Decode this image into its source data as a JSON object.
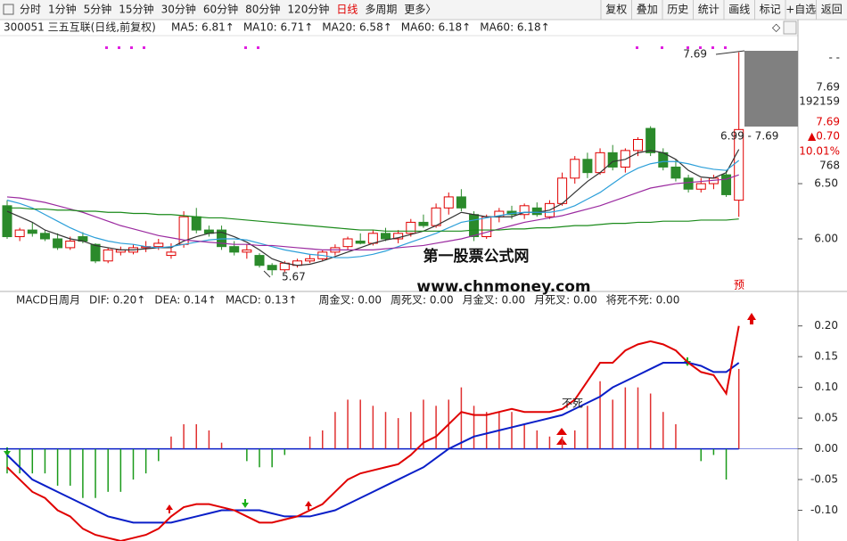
{
  "toolbar": {
    "tabs": [
      "分时",
      "1分钟",
      "5分钟",
      "15分钟",
      "30分钟",
      "60分钟",
      "80分钟",
      "120分钟",
      "日线",
      "多周期",
      "更多〉"
    ],
    "buttons": [
      "复权",
      "叠加",
      "历史",
      "统计",
      "画线",
      "标记",
      "+自选",
      "返回"
    ]
  },
  "quote_panel": [
    "- -",
    "7.69",
    "192159",
    "7.69",
    "▲0.70",
    "10.01%",
    "768"
  ],
  "chart_data": [
    {
      "type": "candlestick",
      "title": "300051 三五互联(日线,前复权)",
      "up_color": "#e00000",
      "down_color": "#2b8a2b",
      "open": [
        6.3,
        6.02,
        6.08,
        6.05,
        6.0,
        5.92,
        6.02,
        5.95,
        5.8,
        5.88,
        5.88,
        5.92,
        5.93,
        5.85,
        5.95,
        6.2,
        6.08,
        6.08,
        5.93,
        5.88,
        5.85,
        5.76,
        5.72,
        5.76,
        5.8,
        5.82,
        5.88,
        5.93,
        5.98,
        5.96,
        6.05,
        6.0,
        6.05,
        6.15,
        6.12,
        6.28,
        6.38,
        6.22,
        6.02,
        6.2,
        6.25,
        6.22,
        6.28,
        6.2,
        6.32,
        6.55,
        6.72,
        6.6,
        6.78,
        6.65,
        6.8,
        7.0,
        6.78,
        6.65,
        6.55,
        6.45,
        6.5,
        6.58,
        6.35
      ],
      "high": [
        6.35,
        6.1,
        6.15,
        6.08,
        6.05,
        6.02,
        6.06,
        5.96,
        5.92,
        5.93,
        5.95,
        5.98,
        6.0,
        5.96,
        6.25,
        6.28,
        6.12,
        6.12,
        5.98,
        5.95,
        5.87,
        5.78,
        5.8,
        5.82,
        5.86,
        5.9,
        5.95,
        6.02,
        6.05,
        6.08,
        6.1,
        6.08,
        6.18,
        6.22,
        6.32,
        6.42,
        6.45,
        6.25,
        6.22,
        6.28,
        6.3,
        6.32,
        6.33,
        6.35,
        6.6,
        6.75,
        6.78,
        6.82,
        6.85,
        6.82,
        6.92,
        7.02,
        6.82,
        6.72,
        6.58,
        6.55,
        6.58,
        6.62,
        7.69
      ],
      "low": [
        6.0,
        5.98,
        6.02,
        5.98,
        5.9,
        5.9,
        5.96,
        5.78,
        5.78,
        5.85,
        5.86,
        5.88,
        5.9,
        5.82,
        5.92,
        6.05,
        6.02,
        5.9,
        5.85,
        5.82,
        5.74,
        5.67,
        5.7,
        5.74,
        5.78,
        5.8,
        5.85,
        5.9,
        5.95,
        5.94,
        5.98,
        5.96,
        6.02,
        6.1,
        6.1,
        6.22,
        6.25,
        5.98,
        6.0,
        6.15,
        6.18,
        6.18,
        6.2,
        6.18,
        6.3,
        6.5,
        6.55,
        6.58,
        6.62,
        6.6,
        6.75,
        6.75,
        6.62,
        6.52,
        6.42,
        6.42,
        6.45,
        6.38,
        6.2
      ],
      "close": [
        6.02,
        6.08,
        6.05,
        6.0,
        5.92,
        5.98,
        5.98,
        5.8,
        5.9,
        5.9,
        5.92,
        5.93,
        5.96,
        5.88,
        6.2,
        6.08,
        6.05,
        5.93,
        5.88,
        5.9,
        5.76,
        5.72,
        5.78,
        5.8,
        5.82,
        5.88,
        5.92,
        6.0,
        5.96,
        6.05,
        6.0,
        6.05,
        6.15,
        6.12,
        6.28,
        6.38,
        6.28,
        6.02,
        6.2,
        6.25,
        6.22,
        6.3,
        6.22,
        6.32,
        6.55,
        6.72,
        6.6,
        6.78,
        6.65,
        6.8,
        6.9,
        6.78,
        6.65,
        6.55,
        6.45,
        6.5,
        6.55,
        6.4,
        6.99
      ],
      "series": [
        {
          "name": "MA5: 6.81↑",
          "color": "#333333",
          "values": [
            6.25,
            6.2,
            6.15,
            6.08,
            6.04,
            6.0,
            5.98,
            5.94,
            5.92,
            5.9,
            5.9,
            5.91,
            5.92,
            5.92,
            5.98,
            6.02,
            6.05,
            6.06,
            6.02,
            5.97,
            5.9,
            5.82,
            5.78,
            5.76,
            5.77,
            5.8,
            5.84,
            5.88,
            5.92,
            5.96,
            5.99,
            6.01,
            6.04,
            6.07,
            6.12,
            6.18,
            6.24,
            6.22,
            6.2,
            6.2,
            6.2,
            6.24,
            6.24,
            6.26,
            6.32,
            6.42,
            6.52,
            6.6,
            6.7,
            6.72,
            6.78,
            6.8,
            6.78,
            6.72,
            6.62,
            6.56,
            6.55,
            6.6,
            6.81
          ]
        },
        {
          "name": "MA10: 6.71↑",
          "color": "#2c9fd9",
          "values": [
            6.35,
            6.32,
            6.28,
            6.22,
            6.16,
            6.1,
            6.05,
            6.01,
            5.98,
            5.96,
            5.95,
            5.93,
            5.92,
            5.93,
            5.95,
            5.97,
            5.99,
            6.0,
            6.0,
            5.99,
            5.96,
            5.93,
            5.9,
            5.88,
            5.86,
            5.85,
            5.83,
            5.83,
            5.84,
            5.86,
            5.89,
            5.93,
            5.97,
            6.01,
            6.05,
            6.1,
            6.15,
            6.17,
            6.19,
            6.21,
            6.23,
            6.24,
            6.24,
            6.24,
            6.26,
            6.3,
            6.36,
            6.42,
            6.5,
            6.58,
            6.64,
            6.68,
            6.7,
            6.7,
            6.68,
            6.65,
            6.63,
            6.62,
            6.71
          ]
        },
        {
          "name": "MA20: 6.58↑",
          "color": "#9b2aa0",
          "values": [
            6.38,
            6.37,
            6.35,
            6.33,
            6.3,
            6.27,
            6.24,
            6.2,
            6.16,
            6.12,
            6.09,
            6.06,
            6.03,
            6.01,
            5.99,
            5.98,
            5.97,
            5.96,
            5.95,
            5.95,
            5.94,
            5.94,
            5.93,
            5.92,
            5.91,
            5.9,
            5.9,
            5.9,
            5.9,
            5.9,
            5.91,
            5.92,
            5.93,
            5.94,
            5.96,
            5.98,
            6.0,
            6.03,
            6.06,
            6.09,
            6.12,
            6.15,
            6.17,
            6.19,
            6.21,
            6.24,
            6.27,
            6.3,
            6.34,
            6.38,
            6.42,
            6.46,
            6.48,
            6.5,
            6.51,
            6.52,
            6.53,
            6.54,
            6.58
          ]
        },
        {
          "name": "MA60: 6.18↑",
          "color": "#1a8a1a",
          "values": [
            6.28,
            6.28,
            6.27,
            6.27,
            6.26,
            6.26,
            6.25,
            6.25,
            6.24,
            6.24,
            6.23,
            6.23,
            6.22,
            6.22,
            6.21,
            6.2,
            6.19,
            6.19,
            6.18,
            6.17,
            6.16,
            6.15,
            6.14,
            6.13,
            6.12,
            6.11,
            6.1,
            6.09,
            6.08,
            6.08,
            6.07,
            6.07,
            6.07,
            6.07,
            6.07,
            6.07,
            6.07,
            6.08,
            6.08,
            6.08,
            6.09,
            6.09,
            6.1,
            6.1,
            6.11,
            6.12,
            6.12,
            6.13,
            6.14,
            6.14,
            6.15,
            6.15,
            6.16,
            6.16,
            6.16,
            6.17,
            6.17,
            6.17,
            6.18
          ]
        }
      ],
      "extra_legend": {
        "name": "MA60: 6.18↑",
        "color": "#999999"
      },
      "annotations": [
        "7.69",
        "6.99 - 7.69",
        "5.67",
        "第一股票公式网",
        "www.chnmoney.com",
        "预"
      ],
      "ylim": [
        5.54,
        7.84
      ],
      "yticks": [
        {
          "value": 6.5,
          "label": "6.50"
        },
        {
          "value": 6,
          "label": "6.00"
        }
      ]
    },
    {
      "type": "macd",
      "title": "MACD日周月",
      "series": [
        {
          "name": "DIF: 0.20↑",
          "color": "#e00000",
          "values": [
            -0.03,
            -0.05,
            -0.07,
            -0.08,
            -0.1,
            -0.11,
            -0.13,
            -0.14,
            -0.145,
            -0.15,
            -0.145,
            -0.14,
            -0.13,
            -0.11,
            -0.095,
            -0.09,
            -0.09,
            -0.095,
            -0.1,
            -0.11,
            -0.12,
            -0.12,
            -0.115,
            -0.11,
            -0.1,
            -0.09,
            -0.07,
            -0.05,
            -0.04,
            -0.035,
            -0.03,
            -0.025,
            -0.01,
            0.01,
            0.02,
            0.04,
            0.06,
            0.055,
            0.055,
            0.06,
            0.065,
            0.06,
            0.06,
            0.06,
            0.065,
            0.08,
            0.11,
            0.14,
            0.14,
            0.16,
            0.17,
            0.175,
            0.17,
            0.16,
            0.14,
            0.125,
            0.12,
            0.09,
            0.2
          ]
        },
        {
          "name": "DEA: 0.14↑",
          "color": "#0a1fc8",
          "values": [
            -0.01,
            -0.03,
            -0.05,
            -0.06,
            -0.07,
            -0.08,
            -0.09,
            -0.1,
            -0.11,
            -0.115,
            -0.12,
            -0.12,
            -0.12,
            -0.12,
            -0.115,
            -0.11,
            -0.105,
            -0.1,
            -0.1,
            -0.1,
            -0.1,
            -0.105,
            -0.11,
            -0.11,
            -0.11,
            -0.105,
            -0.1,
            -0.09,
            -0.08,
            -0.07,
            -0.06,
            -0.05,
            -0.04,
            -0.03,
            -0.015,
            0.0,
            0.01,
            0.02,
            0.025,
            0.03,
            0.035,
            0.04,
            0.045,
            0.05,
            0.055,
            0.065,
            0.075,
            0.085,
            0.1,
            0.11,
            0.12,
            0.13,
            0.14,
            0.14,
            0.14,
            0.135,
            0.125,
            0.125,
            0.14
          ]
        }
      ],
      "bars": {
        "name": "MACD: 0.13↑",
        "color": "#d020d0",
        "up_color": "#e03030",
        "down_color": "#1a9a1a",
        "values": [
          -0.04,
          -0.04,
          -0.04,
          -0.04,
          -0.06,
          -0.06,
          -0.08,
          -0.08,
          -0.07,
          -0.07,
          -0.05,
          -0.04,
          -0.02,
          0.02,
          0.04,
          0.04,
          0.03,
          0.01,
          0.0,
          -0.02,
          -0.03,
          -0.03,
          -0.01,
          0.0,
          0.02,
          0.03,
          0.06,
          0.08,
          0.08,
          0.07,
          0.06,
          0.05,
          0.06,
          0.08,
          0.07,
          0.08,
          0.1,
          0.07,
          0.06,
          0.06,
          0.06,
          0.04,
          0.03,
          0.02,
          0.02,
          0.03,
          0.07,
          0.11,
          0.08,
          0.1,
          0.1,
          0.09,
          0.06,
          0.04,
          0.0,
          -0.02,
          -0.01,
          -0.05,
          0.13
        ]
      },
      "indicators": [
        {
          "text": "周金叉: 0.00",
          "color": "#e00000"
        },
        {
          "text": "周死叉: 0.00",
          "color": "#0a1fc8"
        },
        {
          "text": "月金叉: 0.00",
          "color": "#d020d0"
        },
        {
          "text": "月死叉: 0.00",
          "color": "#1a9a9a"
        },
        {
          "text": "将死不死: 0.00",
          "color": "#333333"
        }
      ],
      "annotations": [
        "不死"
      ],
      "ylim": [
        -0.15,
        0.23
      ],
      "yticks": [
        {
          "value": 0.2,
          "label": "0.20"
        },
        0.15,
        {
          "value": 0.1,
          "label": "0.10"
        },
        0.05,
        {
          "value": 0,
          "label": "0.00"
        },
        -0.05,
        {
          "value": -0.1,
          "label": "-0.10"
        }
      ]
    }
  ]
}
